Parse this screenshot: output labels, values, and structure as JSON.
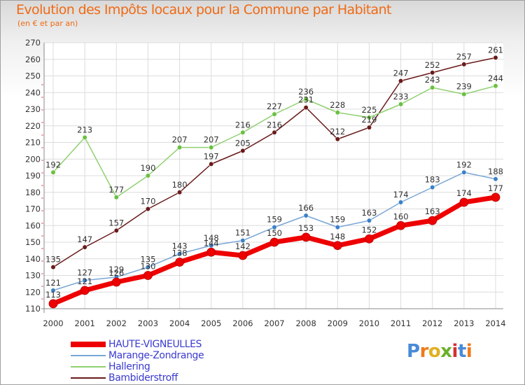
{
  "title": "Evolution des Impôts locaux pour la Commune par Habitant",
  "subtitle": "(en € et par an)",
  "logo": {
    "text": "Proxiti",
    "letters": [
      {
        "ch": "P",
        "color": "#4a8ad8"
      },
      {
        "ch": "r",
        "color": "#f07a1a"
      },
      {
        "ch": "o",
        "color": "#e0b020"
      },
      {
        "ch": "x",
        "color": "#6ab02a"
      },
      {
        "ch": "i",
        "color": "#d43030"
      },
      {
        "ch": "t",
        "color": "#4a8ad8"
      },
      {
        "ch": "i",
        "color": "#f07a1a"
      }
    ]
  },
  "chart_data": {
    "type": "line",
    "title": "Evolution des Impôts locaux pour la Commune par Habitant",
    "ylabel": "(en € et par an)",
    "xlabel": "",
    "ylim": [
      110,
      270
    ],
    "y_ticks": [
      110,
      120,
      130,
      140,
      150,
      160,
      170,
      180,
      190,
      200,
      210,
      220,
      230,
      240,
      250,
      260,
      270
    ],
    "x": [
      "2000",
      "2001",
      "2002",
      "2003",
      "2004",
      "2005",
      "2006",
      "2007",
      "2008",
      "2009",
      "2010",
      "2011",
      "2012",
      "2013",
      "2014"
    ],
    "grid": true,
    "legend_position": "bottom-left",
    "series": [
      {
        "name": "Bambiderstroff",
        "color": "#6a1a1a",
        "marker": "#6a1a1a",
        "width": 1.5,
        "radius": 3.2,
        "values": [
          135,
          147,
          157,
          170,
          180,
          197,
          205,
          216,
          231,
          212,
          219,
          247,
          252,
          257,
          261
        ]
      },
      {
        "name": "Hallering",
        "color": "#90d070",
        "marker": "#6ac040",
        "width": 1.5,
        "radius": 3.2,
        "values": [
          192,
          213,
          177,
          190,
          207,
          207,
          216,
          227,
          236,
          228,
          225,
          233,
          243,
          239,
          244
        ]
      },
      {
        "name": "Marange-Zondrange",
        "color": "#7aa6d6",
        "marker": "#3a80c8",
        "width": 1.5,
        "radius": 3.2,
        "values": [
          121,
          127,
          129,
          135,
          143,
          148,
          151,
          159,
          166,
          159,
          163,
          174,
          183,
          192,
          188
        ]
      },
      {
        "name": "HAUTE-VIGNEULLES",
        "color": "#ee0000",
        "marker": "#ee0000",
        "width": 7,
        "radius": 6,
        "values": [
          113,
          121,
          126,
          130,
          138,
          144,
          142,
          150,
          153,
          148,
          152,
          160,
          163,
          174,
          177
        ]
      }
    ],
    "legend_order": [
      "HAUTE-VIGNEULLES",
      "Marange-Zondrange",
      "Hallering",
      "Bambiderstroff"
    ]
  }
}
